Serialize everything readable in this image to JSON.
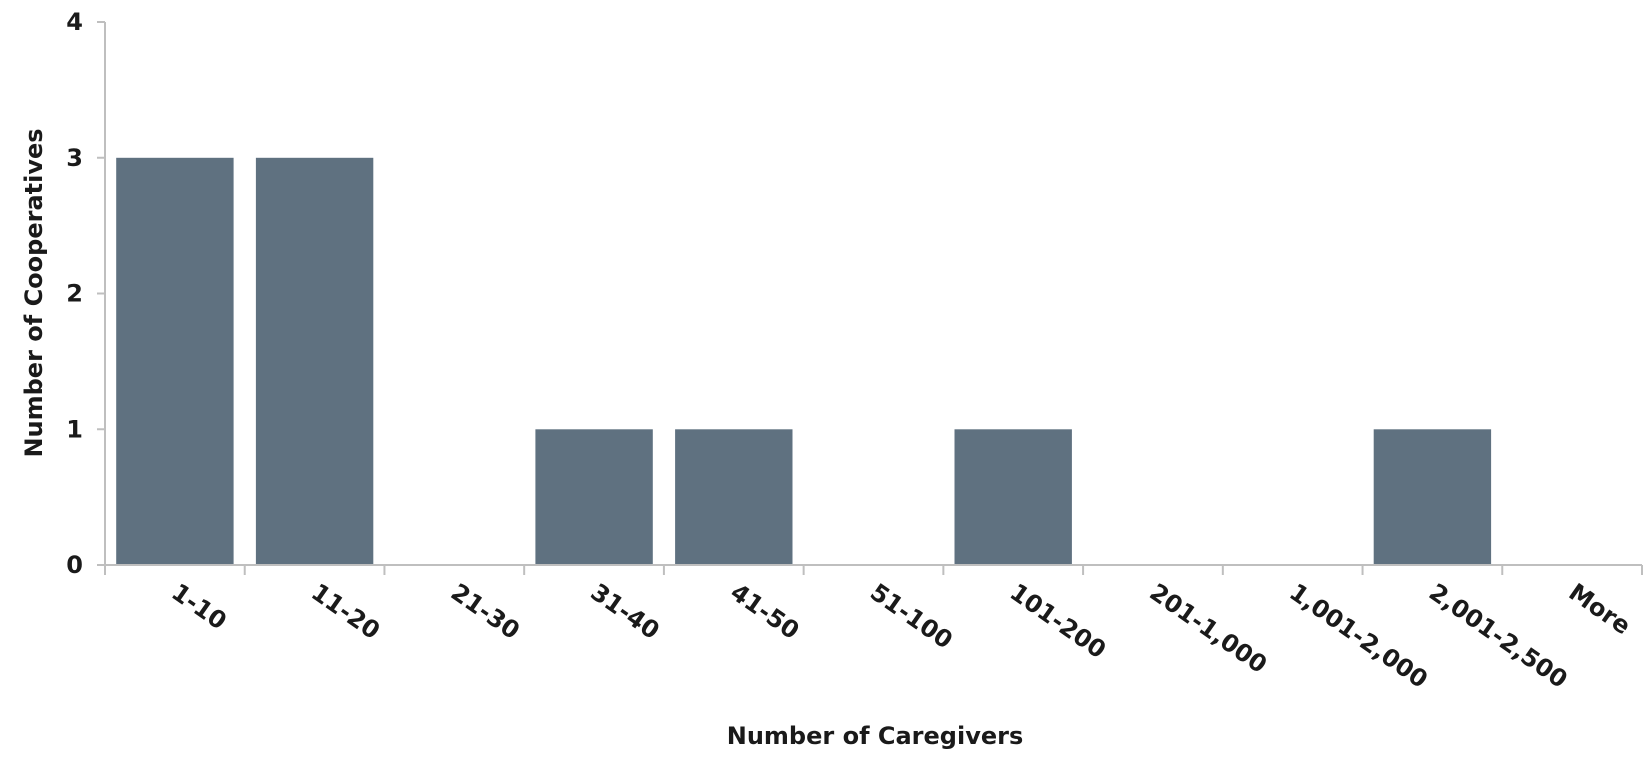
{
  "chart_data": {
    "type": "bar",
    "title": "",
    "xlabel": "Number of Caregivers",
    "ylabel": "Number of Cooperatives",
    "categories": [
      "1-10",
      "11-20",
      "21-30",
      "31-40",
      "41-50",
      "51-100",
      "101-200",
      "201-1,000",
      "1,001-2,000",
      "2,001-2,500",
      "More"
    ],
    "values": [
      3,
      3,
      0,
      1,
      1,
      0,
      1,
      0,
      0,
      1,
      0
    ],
    "ylim": [
      0,
      4
    ],
    "yticks": [
      "0",
      "1",
      "2",
      "3",
      "4"
    ],
    "grid": false,
    "legend": "none",
    "bar_color": "#5f7180"
  }
}
